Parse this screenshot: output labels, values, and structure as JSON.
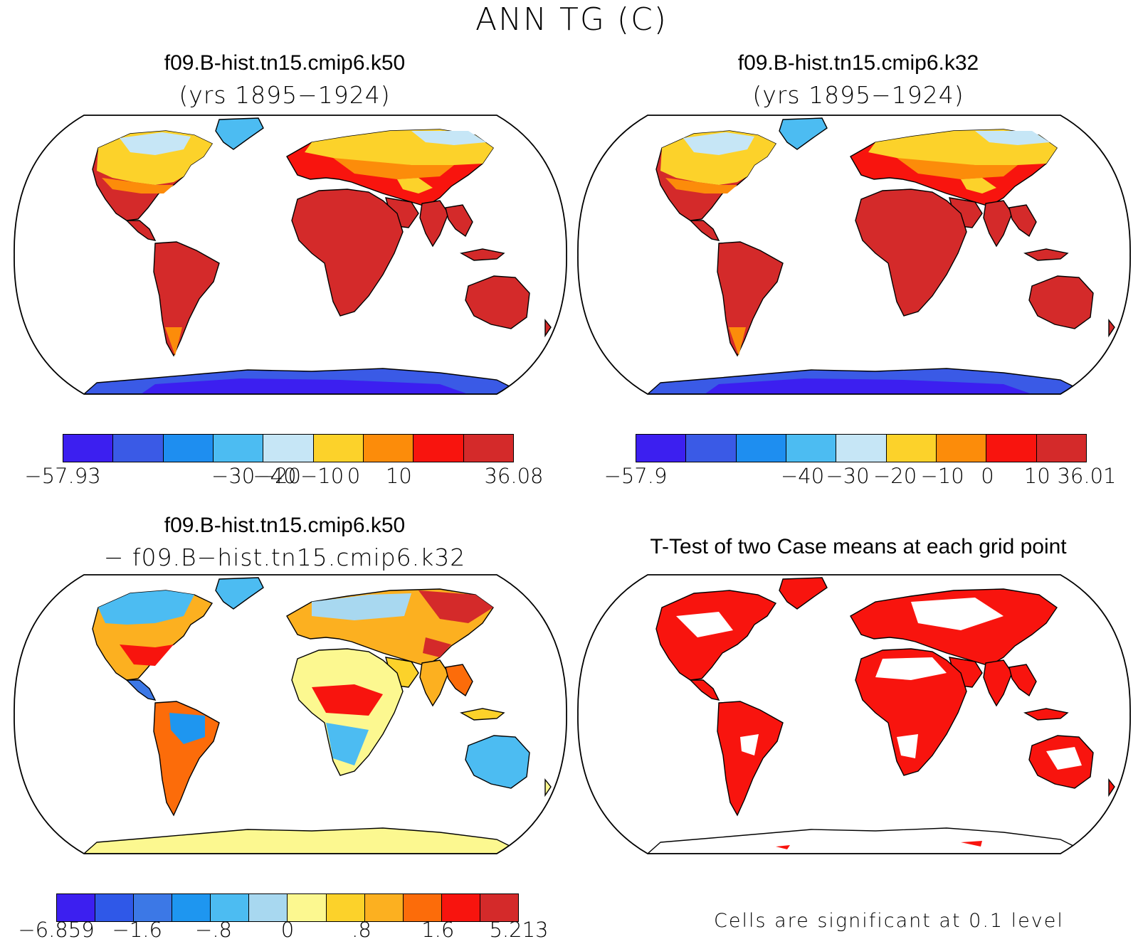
{
  "main_title": "ANN TG (C)",
  "panels": [
    {
      "id": "k50",
      "title": "f09.B-hist.tn15.cmip6.k50",
      "subtitle": "(yrs 1895−1924)"
    },
    {
      "id": "k32",
      "title": "f09.B-hist.tn15.cmip6.k32",
      "subtitle": "(yrs 1895−1924)"
    },
    {
      "id": "diff",
      "title": "f09.B-hist.tn15.cmip6.k50",
      "subtitle": "− f09.B−hist.tn15.cmip6.k32"
    },
    {
      "id": "ttest",
      "title": "T-Test of two Case means at each grid point",
      "subtitle": ""
    }
  ],
  "colorbars": {
    "k50": {
      "colors": [
        "#3c1ff0",
        "#3a5ae6",
        "#1e8ef0",
        "#4cbcf2",
        "#c6e6f6",
        "#fcd22a",
        "#fc8c0a",
        "#f8140e",
        "#d42a2a"
      ],
      "labels": [
        "−57.93",
        "−40",
        "−30",
        "−20",
        "−10",
        "0",
        "10",
        "36.08"
      ]
    },
    "k32": {
      "colors": [
        "#3c1ff0",
        "#3a5ae6",
        "#1e8ef0",
        "#4cbcf2",
        "#c6e6f6",
        "#fcd22a",
        "#fc8c0a",
        "#f8140e",
        "#d42a2a"
      ],
      "labels": [
        "−57.9",
        "−40",
        "−30",
        "−20",
        "−10",
        "0",
        "10",
        "36.01"
      ]
    },
    "diff": {
      "colors": [
        "#3c1ff0",
        "#2f58e8",
        "#3c78e6",
        "#1e96f0",
        "#4cbcf2",
        "#a8d8f0",
        "#fcf890",
        "#fcd22a",
        "#fcb020",
        "#fc6c0a",
        "#f8140e",
        "#d42a2a"
      ],
      "labels": [
        "−6.859",
        "−1.6",
        "−.8",
        "0",
        ".8",
        "1.6",
        "5.213"
      ]
    }
  },
  "significance_note": "Cells are significant at 0.1 level",
  "significance_color": "#f8140e"
}
